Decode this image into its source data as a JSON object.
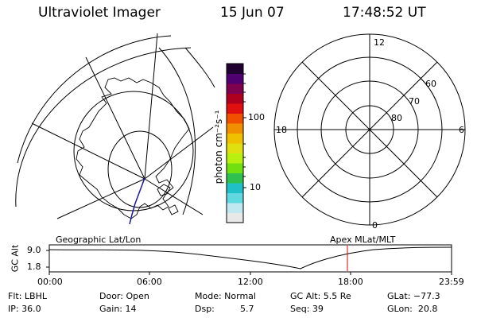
{
  "header": {
    "title": "Ultraviolet Imager",
    "date": "15 Jun 07",
    "time": "17:48:52 UT"
  },
  "left_panel": {
    "caption": "Geographic Lat/Lon"
  },
  "right_panel": {
    "caption": "Apex MLat/MLT",
    "mlt_labels": {
      "top": "12",
      "left": "18",
      "right": "6",
      "bottom": "0"
    },
    "lat_labels": [
      "60",
      "70",
      "80"
    ]
  },
  "colorbar": {
    "unit_label": "photon cm⁻²s⁻¹",
    "ticks": [
      "100",
      "10"
    ],
    "colors": [
      "#e8e8e8",
      "#c0e8f0",
      "#60d8e0",
      "#20c0c8",
      "#30c050",
      "#70e010",
      "#b8f010",
      "#e0e010",
      "#f0c000",
      "#f09000",
      "#f05000",
      "#e01010",
      "#b00020",
      "#800050",
      "#500070",
      "#200030"
    ]
  },
  "timeline": {
    "y_axis_label": "GC Alt",
    "y_ticks": [
      "9.0",
      "1.8"
    ],
    "x_ticks": [
      "00:00",
      "06:00",
      "12:00",
      "18:00",
      "23:59"
    ],
    "marker_color": "#e00000",
    "marker_time": "17:48"
  },
  "info": {
    "filter": "Flt: LBHL",
    "ip": "IP: 36.0",
    "door": "Door: Open",
    "gain": "Gain: 14",
    "mode": "Mode: Normal",
    "dsp_label": "Dsp:",
    "dsp_value": "5.7",
    "gc_alt": "GC Alt: 5.5 Re",
    "seq": "Seq: 39",
    "glat": "GLat: −77.3",
    "glon": "GLon:  20.8"
  }
}
